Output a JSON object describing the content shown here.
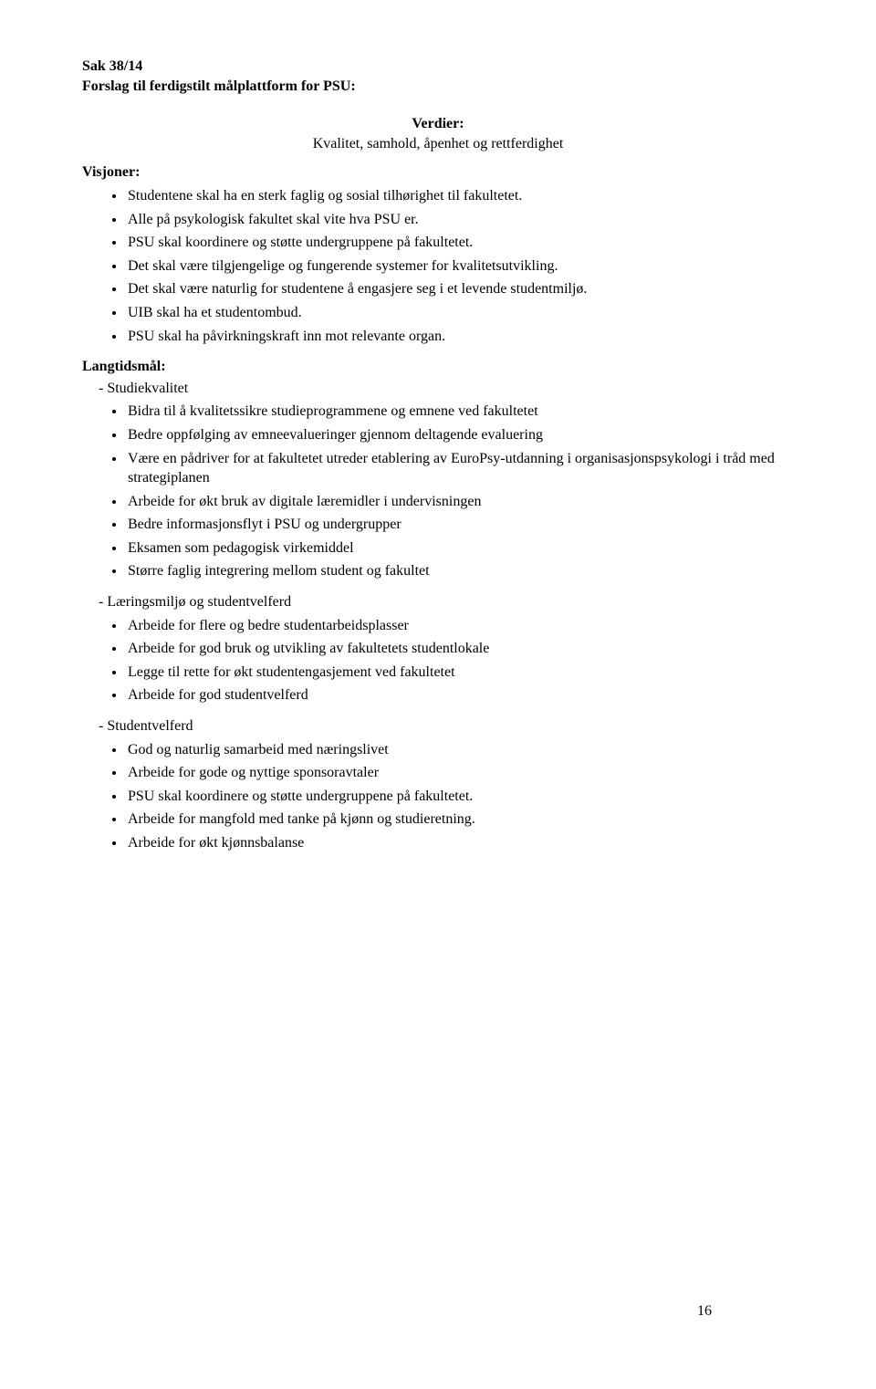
{
  "header": {
    "sak": "Sak 38/14",
    "title": "Forslag til ferdigstilt målplattform for PSU:"
  },
  "verdier": {
    "heading": "Verdier:",
    "line": "Kvalitet, samhold, åpenhet og rettferdighet"
  },
  "visjoner": {
    "heading": "Visjoner:",
    "items": [
      "Studentene skal ha en sterk faglig og sosial tilhørighet til fakultetet.",
      "Alle på psykologisk fakultet skal vite hva PSU er.",
      "PSU skal koordinere og støtte undergruppene på fakultetet.",
      "Det skal være tilgjengelige og fungerende systemer for kvalitetsutvikling.",
      "Det skal være naturlig for studentene å engasjere seg i et levende studentmiljø.",
      "UIB skal ha et studentombud.",
      "PSU skal ha påvirkningskraft inn mot relevante organ."
    ]
  },
  "langtidsmal": {
    "heading": "Langtidsmål:",
    "groups": [
      {
        "label": "Studiekvalitet",
        "items": [
          "Bidra til å kvalitetssikre studieprogrammene og emnene ved fakultetet",
          "Bedre oppfølging av emneevalueringer gjennom deltagende evaluering",
          "Være en pådriver for at fakultetet utreder etablering av EuroPsy-utdanning i organisasjonspsykologi i tråd med strategiplanen",
          "Arbeide for økt bruk av digitale læremidler i undervisningen",
          "Bedre informasjonsflyt i PSU og undergrupper",
          "Eksamen som pedagogisk virkemiddel",
          "Større faglig integrering mellom student og fakultet"
        ]
      },
      {
        "label": "Læringsmiljø og studentvelferd",
        "items": [
          "Arbeide for flere og bedre studentarbeidsplasser",
          "Arbeide for god bruk og utvikling av fakultetets studentlokale",
          "Legge til rette for økt studentengasjement ved fakultetet",
          "Arbeide for god studentvelferd"
        ]
      },
      {
        "label": "Studentvelferd",
        "items": [
          "God og naturlig samarbeid med næringslivet",
          "Arbeide for gode og nyttige sponsoravtaler",
          "PSU skal koordinere og støtte undergruppene på fakultetet.",
          "Arbeide for mangfold med tanke på kjønn og studieretning.",
          "Arbeide for økt kjønnsbalanse"
        ]
      }
    ]
  },
  "pageNumber": "16"
}
